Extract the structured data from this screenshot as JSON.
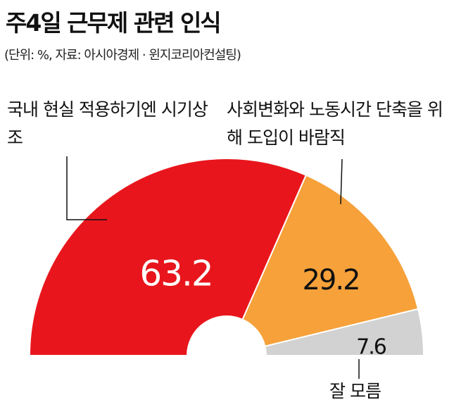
{
  "chart_data": {
    "type": "half-donut",
    "title": "주4일 근무제 관련 인식",
    "subtitle": "(단위: %, 자료: 아시아경제 · 윈지코리아컨설팅)",
    "categories": [
      "국내 현실 적용하기엔 시기상조",
      "사회변화와 노동시간 단축을 위해 도입이 바람직",
      "잘 모름"
    ],
    "values": [
      63.2,
      29.2,
      7.6
    ],
    "colors": [
      "#e8161c",
      "#f6a13a",
      "#d2d2d2"
    ]
  }
}
